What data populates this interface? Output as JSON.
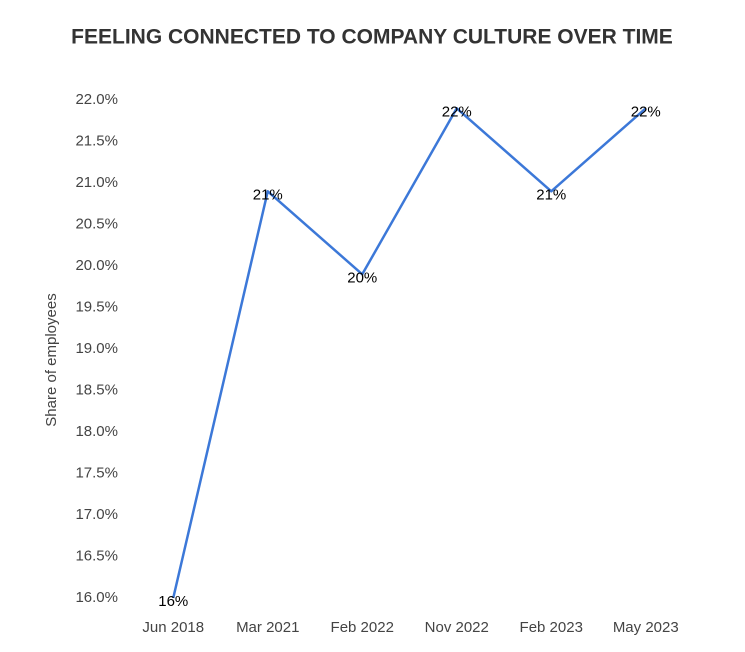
{
  "chart_data": {
    "type": "line",
    "title": "FEELING CONNECTED TO COMPANY CULTURE OVER TIME",
    "y_label": "Share of employees",
    "categories": [
      "Jun 2018",
      "Mar 2021",
      "Feb 2022",
      "Nov 2022",
      "Feb 2023",
      "May 2023"
    ],
    "values": [
      16.0,
      20.9,
      19.9,
      21.9,
      20.9,
      21.9
    ],
    "value_labels": [
      "16%",
      "21%",
      "20%",
      "22%",
      "21%",
      "22%"
    ],
    "color": "#3c78d8",
    "ylim": [
      16.0,
      22.0
    ],
    "yticks": [
      {
        "value": 16.0,
        "label": "16.0%"
      },
      {
        "value": 16.5,
        "label": "16.5%"
      },
      {
        "value": 17.0,
        "label": "17.0%"
      },
      {
        "value": 17.5,
        "label": "17.5%"
      },
      {
        "value": 18.0,
        "label": "18.0%"
      },
      {
        "value": 18.5,
        "label": "18.5%"
      },
      {
        "value": 19.0,
        "label": "19.0%"
      },
      {
        "value": 19.5,
        "label": "19.5%"
      },
      {
        "value": 20.0,
        "label": "20.0%"
      },
      {
        "value": 20.5,
        "label": "20.5%"
      },
      {
        "value": 21.0,
        "label": "21.0%"
      },
      {
        "value": 21.5,
        "label": "21.5%"
      },
      {
        "value": 22.0,
        "label": "22.0%"
      }
    ],
    "grid": false
  }
}
